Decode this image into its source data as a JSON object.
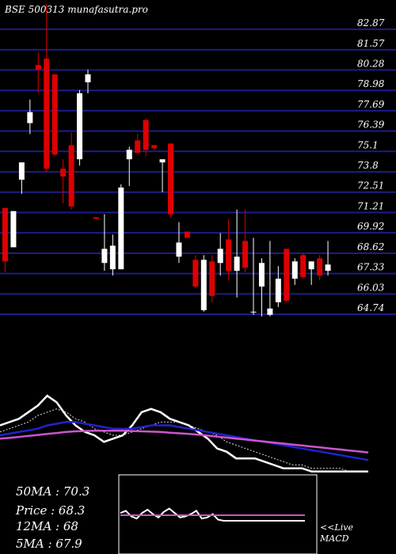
{
  "chart_data": [
    {
      "type": "candlestick",
      "title": "BSE 500313 munafasutra.pro",
      "y_ticks": [
        82.87,
        81.57,
        80.28,
        78.98,
        77.69,
        76.39,
        75.1,
        73.8,
        72.51,
        71.21,
        69.92,
        68.62,
        67.33,
        66.03,
        64.74
      ],
      "ylim": [
        64.74,
        84.5
      ],
      "grid": true,
      "colors": {
        "up": "#ffffff",
        "down": "#dd0000",
        "grid": "#1c1c8a",
        "background": "#000000"
      },
      "candles": [
        {
          "o": 71.5,
          "h": 71.5,
          "l": 67.4,
          "c": 68.1
        },
        {
          "o": 69.0,
          "h": 71.3,
          "l": 69.0,
          "c": 71.3
        },
        {
          "o": 73.3,
          "h": 74.4,
          "l": 72.4,
          "c": 74.4
        },
        {
          "o": 76.9,
          "h": 78.4,
          "l": 76.2,
          "c": 77.6
        },
        {
          "o": 80.6,
          "h": 81.4,
          "l": 78.8,
          "c": 80.3
        },
        {
          "o": 81.0,
          "h": 84.5,
          "l": 73.8,
          "c": 74.0
        },
        {
          "o": 80.0,
          "h": 80.0,
          "l": 74.8,
          "c": 74.9
        },
        {
          "o": 74.0,
          "h": 74.6,
          "l": 71.8,
          "c": 73.5
        },
        {
          "o": 75.5,
          "h": 76.3,
          "l": 71.4,
          "c": 71.6
        },
        {
          "o": 74.6,
          "h": 79.0,
          "l": 74.2,
          "c": 78.8
        },
        {
          "o": 79.5,
          "h": 80.3,
          "l": 78.8,
          "c": 80.0
        },
        {
          "o": 70.9,
          "h": 70.9,
          "l": 70.8,
          "c": 70.8
        },
        {
          "o": 68.0,
          "h": 71.1,
          "l": 67.5,
          "c": 68.9
        },
        {
          "o": 67.6,
          "h": 69.8,
          "l": 67.2,
          "c": 69.1
        },
        {
          "o": 67.6,
          "h": 73.0,
          "l": 67.6,
          "c": 72.8
        },
        {
          "o": 74.6,
          "h": 75.4,
          "l": 72.9,
          "c": 75.2
        },
        {
          "o": 75.8,
          "h": 76.2,
          "l": 75.0,
          "c": 75.0
        },
        {
          "o": 77.1,
          "h": 77.2,
          "l": 74.8,
          "c": 75.2
        },
        {
          "o": 75.5,
          "h": 75.5,
          "l": 75.2,
          "c": 75.3
        },
        {
          "o": 74.4,
          "h": 74.5,
          "l": 72.5,
          "c": 74.6
        },
        {
          "o": 75.6,
          "h": 75.6,
          "l": 70.9,
          "c": 71.1
        },
        {
          "o": 68.4,
          "h": 70.6,
          "l": 68.0,
          "c": 69.3
        },
        {
          "o": 70.0,
          "h": 70.0,
          "l": 69.6,
          "c": 69.6
        },
        {
          "o": 68.2,
          "h": 68.5,
          "l": 66.4,
          "c": 66.5
        },
        {
          "o": 65.0,
          "h": 68.5,
          "l": 64.9,
          "c": 68.2
        },
        {
          "o": 68.1,
          "h": 68.5,
          "l": 65.5,
          "c": 65.9
        },
        {
          "o": 68.0,
          "h": 69.9,
          "l": 67.2,
          "c": 68.9
        },
        {
          "o": 69.5,
          "h": 70.8,
          "l": 66.9,
          "c": 67.5
        },
        {
          "o": 67.5,
          "h": 71.4,
          "l": 65.8,
          "c": 68.4
        },
        {
          "o": 69.4,
          "h": 71.4,
          "l": 67.4,
          "c": 67.7
        },
        {
          "o": 64.9,
          "h": 69.6,
          "l": 64.7,
          "c": 64.9
        },
        {
          "o": 66.5,
          "h": 68.3,
          "l": 64.6,
          "c": 68.0
        },
        {
          "o": 64.7,
          "h": 69.4,
          "l": 64.6,
          "c": 65.1
        },
        {
          "o": 65.5,
          "h": 67.8,
          "l": 65.2,
          "c": 67.0
        },
        {
          "o": 68.9,
          "h": 68.9,
          "l": 65.5,
          "c": 65.6
        },
        {
          "o": 67.0,
          "h": 68.3,
          "l": 66.6,
          "c": 68.1
        },
        {
          "o": 68.5,
          "h": 68.6,
          "l": 67.0,
          "c": 67.1
        },
        {
          "o": 67.6,
          "h": 68.1,
          "l": 66.6,
          "c": 68.1
        },
        {
          "o": 68.3,
          "h": 68.5,
          "l": 66.9,
          "c": 67.2
        },
        {
          "o": 67.5,
          "h": 69.4,
          "l": 67.2,
          "c": 67.9
        }
      ]
    },
    {
      "type": "line",
      "series": [
        {
          "color": "#ffffff",
          "values": [
            79,
            80,
            81,
            83,
            85,
            88,
            86,
            82,
            79,
            77,
            76,
            74,
            75,
            76,
            79,
            83,
            84,
            83,
            81,
            80,
            79,
            77,
            75,
            72,
            71,
            69,
            69,
            69,
            68,
            67,
            66,
            66,
            66,
            65,
            65,
            65,
            65,
            65,
            65,
            65
          ]
        },
        {
          "color": "#dddddd",
          "values": [
            77,
            78,
            79,
            80,
            82,
            83,
            84,
            83,
            81,
            80,
            78,
            77,
            76,
            76,
            77,
            78,
            79,
            80,
            80,
            80,
            79,
            78,
            77,
            76,
            74,
            73,
            72,
            71,
            70,
            69,
            68,
            67,
            67,
            66,
            66,
            66,
            66,
            65,
            65,
            65
          ]
        },
        {
          "color": "#2222cc",
          "values": [
            76,
            76.5,
            77,
            77.5,
            78,
            79,
            79.5,
            80,
            80,
            79.5,
            79,
            78.5,
            78,
            78,
            78,
            78.5,
            79,
            79,
            79,
            78.5,
            78,
            77.5,
            77,
            76.5,
            76,
            75.5,
            75,
            74.5,
            74,
            73.5,
            73,
            72.5,
            72,
            71.5,
            71,
            70.5,
            70,
            69.5,
            69,
            68.5
          ]
        },
        {
          "color": "#cc55cc",
          "values": [
            75,
            75.2,
            75.5,
            75.8,
            76.1,
            76.4,
            76.7,
            77,
            77.2,
            77.3,
            77.4,
            77.4,
            77.4,
            77.4,
            77.3,
            77.2,
            77.1,
            77,
            76.8,
            76.6,
            76.4,
            76.2,
            75.9,
            75.6,
            75.3,
            75,
            74.7,
            74.4,
            74.1,
            73.8,
            73.5,
            73.2,
            72.9,
            72.6,
            72.3,
            72,
            71.7,
            71.4,
            71.1,
            70.8
          ]
        }
      ]
    },
    {
      "type": "line",
      "series": [
        {
          "color": "#ffffff",
          "values": [
            0.2,
            0.4,
            -0.1,
            -0.3,
            0.2,
            0.5,
            0.1,
            -0.2,
            0.3,
            0.6,
            0.2,
            -0.2,
            -0.1,
            0.1,
            0.4,
            -0.3,
            -0.2,
            0.1,
            -0.4,
            -0.5,
            -0.5,
            -0.5,
            -0.5,
            -0.5,
            -0.5,
            -0.5,
            -0.5,
            -0.5,
            -0.5,
            -0.5,
            -0.5,
            -0.5,
            -0.5,
            -0.5,
            -0.5
          ]
        },
        {
          "color": "#cc55cc",
          "values": [
            0,
            0,
            0,
            0,
            0,
            0,
            0,
            0,
            0,
            0,
            0,
            0,
            0,
            0,
            0,
            0,
            0,
            0,
            0,
            0,
            0,
            0,
            0,
            0,
            0,
            0,
            0,
            0,
            0,
            0,
            0,
            0,
            0,
            0,
            0
          ]
        }
      ]
    }
  ],
  "stats": {
    "ma50": "50MA : 70.3",
    "price": "Price  : 68.3",
    "ma12": "12MA : 68",
    "ma5": "5MA : 67.9"
  },
  "live_label": "<<Live",
  "macd_label": "MACD"
}
